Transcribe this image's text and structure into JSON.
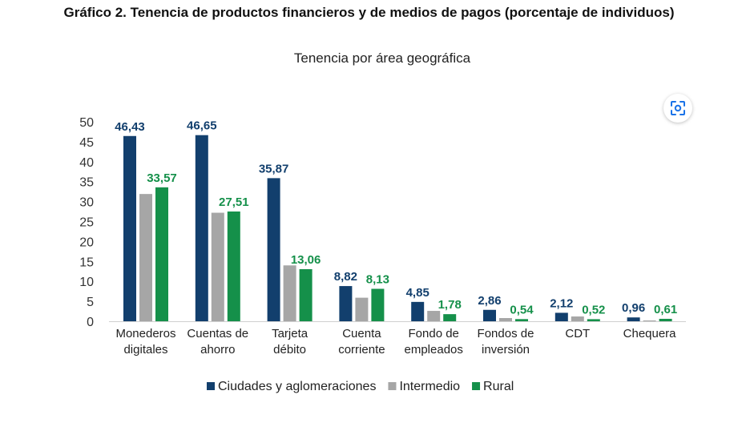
{
  "page": {
    "title": "Gráfico 2. Tenencia de productos financieros y de medios de pagos (porcentaje de individuos)"
  },
  "lens_button": {
    "icon": "lens-scan-icon"
  },
  "chart_data": {
    "type": "bar",
    "title": "Tenencia por área geográfica",
    "xlabel": "",
    "ylabel": "",
    "ylim": [
      0,
      50
    ],
    "yticks": [
      0,
      5,
      10,
      15,
      20,
      25,
      30,
      35,
      40,
      45,
      50
    ],
    "grid": false,
    "legend_position": "bottom",
    "categories": [
      [
        "Monederos",
        "digitales"
      ],
      [
        "Cuentas de",
        "ahorro"
      ],
      [
        "Tarjeta",
        "débito"
      ],
      [
        "Cuenta",
        "corriente"
      ],
      [
        "Fondo de",
        "empleados"
      ],
      [
        "Fondos de",
        "inversión"
      ],
      [
        "CDT"
      ],
      [
        "Chequera"
      ]
    ],
    "series": [
      {
        "name": "Ciudades y aglomeraciones",
        "color": "#123f6d",
        "values": [
          46.43,
          46.65,
          35.87,
          8.82,
          4.85,
          2.86,
          2.12,
          0.96
        ],
        "labels": [
          "46,43",
          "46,65",
          "35,87",
          "8,82",
          "4,85",
          "2,86",
          "2,12",
          "0,96"
        ]
      },
      {
        "name": "Intermedio",
        "color": "#a6a6a6",
        "values": [
          31.9,
          27.2,
          14.0,
          5.9,
          2.6,
          0.8,
          1.2,
          0.2
        ],
        "labels": null
      },
      {
        "name": "Rural",
        "color": "#15904a",
        "values": [
          33.57,
          27.51,
          13.06,
          8.13,
          1.78,
          0.54,
          0.52,
          0.61
        ],
        "labels": [
          "33,57",
          "27,51",
          "13,06",
          "8,13",
          "1,78",
          "0,54",
          "0,52",
          "0,61"
        ]
      }
    ]
  }
}
